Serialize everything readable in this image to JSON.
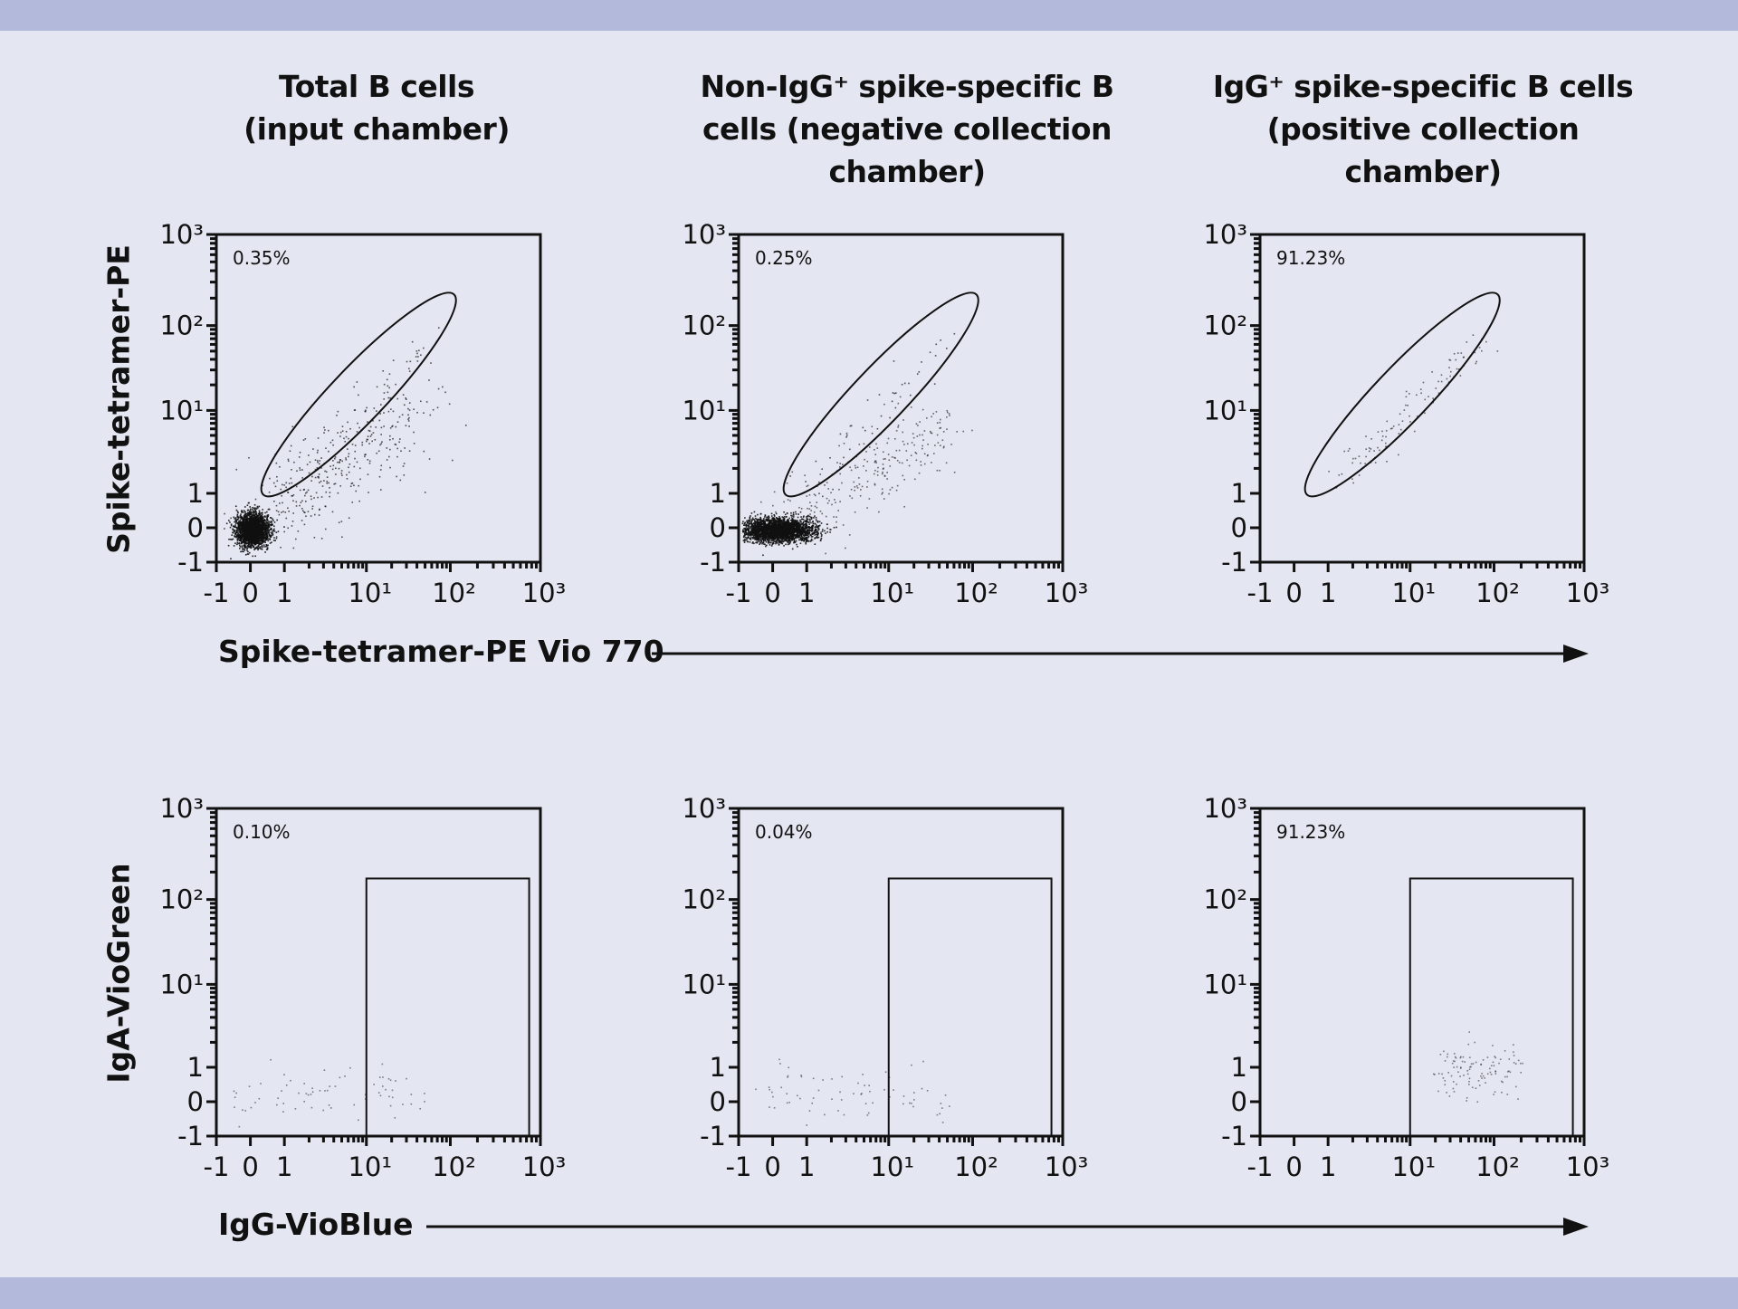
{
  "colors": {
    "background": "#e4e6f1",
    "band": "#b3b9db",
    "ink": "#111111"
  },
  "columns": [
    {
      "title": [
        "Total B cells",
        "(input chamber)"
      ]
    },
    {
      "title": [
        "Non-IgG⁺ spike-specific B",
        "cells (negative collection",
        "chamber)"
      ]
    },
    {
      "title": [
        "IgG⁺ spike-specific B cells",
        "(positive collection",
        "chamber)"
      ]
    }
  ],
  "rows": [
    {
      "ylabel": "Spike-tetramer-PE",
      "xlabel": "Spike-tetramer-PE Vio 770"
    },
    {
      "ylabel": "IgA-VioGreen",
      "xlabel": "IgG-VioBlue"
    }
  ],
  "chart_data": {
    "type": "scatter",
    "scale": "biexponential",
    "axis_ticks": [
      -1,
      0,
      1,
      10,
      100,
      1000
    ],
    "tick_labels": [
      "-1",
      "0",
      "1",
      "10¹",
      "10²",
      "10³"
    ],
    "xlim": [
      -1,
      1000
    ],
    "ylim": [
      -1,
      1000
    ],
    "panels": [
      {
        "row": 0,
        "col": 0,
        "gate": {
          "type": "ellipse",
          "from": [
            0.6,
            1.2
          ],
          "to": [
            90,
            180
          ]
        },
        "percent": "0.35%",
        "population": "dense-cluster-near-0"
      },
      {
        "row": 0,
        "col": 1,
        "gate": {
          "type": "ellipse",
          "from": [
            0.6,
            1.2
          ],
          "to": [
            90,
            180
          ]
        },
        "percent": "0.25%",
        "population": "wide-cluster-near-0"
      },
      {
        "row": 0,
        "col": 2,
        "gate": {
          "type": "ellipse",
          "from": [
            0.6,
            1.2
          ],
          "to": [
            90,
            180
          ]
        },
        "percent": "91.23%",
        "population": "sparse-in-gate"
      },
      {
        "row": 1,
        "col": 0,
        "gate": {
          "type": "rectangle",
          "x": [
            10,
            750
          ],
          "y": [
            -1,
            170
          ]
        },
        "percent": "0.10%",
        "population": "sparse-low"
      },
      {
        "row": 1,
        "col": 1,
        "gate": {
          "type": "rectangle",
          "x": [
            10,
            750
          ],
          "y": [
            -1,
            170
          ]
        },
        "percent": "0.04%",
        "population": "sparse-low"
      },
      {
        "row": 1,
        "col": 2,
        "gate": {
          "type": "rectangle",
          "x": [
            10,
            750
          ],
          "y": [
            -1,
            170
          ]
        },
        "percent": "91.23%",
        "population": "sparse-in-gate"
      }
    ]
  }
}
